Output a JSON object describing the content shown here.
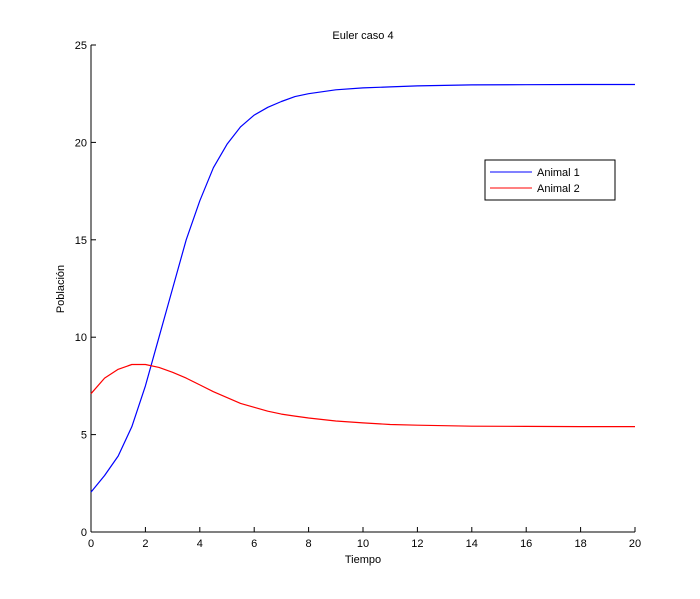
{
  "chart_data": {
    "type": "line",
    "title": "Euler caso 4",
    "xlabel": "Tiempo",
    "ylabel": "Población",
    "xlim": [
      0,
      20
    ],
    "ylim": [
      0,
      25
    ],
    "xticks": [
      0,
      2,
      4,
      6,
      8,
      10,
      12,
      14,
      16,
      18,
      20
    ],
    "yticks": [
      0,
      5,
      10,
      15,
      20,
      25
    ],
    "grid": false,
    "legend_position": "upper right (inside, near 75% height)",
    "x": [
      0,
      0.5,
      1,
      1.5,
      2,
      2.5,
      3,
      3.5,
      4,
      4.5,
      5,
      5.5,
      6,
      6.5,
      7,
      7.5,
      8,
      9,
      10,
      11,
      12,
      14,
      16,
      18,
      20
    ],
    "series": [
      {
        "name": "Animal 1",
        "color": "#0000ff",
        "values": [
          2.05,
          2.9,
          3.9,
          5.4,
          7.5,
          10.0,
          12.5,
          15.0,
          17.0,
          18.7,
          19.9,
          20.8,
          21.4,
          21.8,
          22.1,
          22.35,
          22.5,
          22.7,
          22.8,
          22.85,
          22.9,
          22.95,
          22.96,
          22.97,
          22.97
        ]
      },
      {
        "name": "Animal 2",
        "color": "#ff0000",
        "values": [
          7.1,
          7.9,
          8.35,
          8.6,
          8.6,
          8.45,
          8.2,
          7.9,
          7.55,
          7.2,
          6.9,
          6.6,
          6.4,
          6.2,
          6.05,
          5.95,
          5.85,
          5.7,
          5.6,
          5.52,
          5.48,
          5.43,
          5.42,
          5.41,
          5.41
        ]
      }
    ]
  },
  "legend": {
    "items": [
      {
        "label": "Animal 1",
        "color": "#0000ff"
      },
      {
        "label": "Animal 2",
        "color": "#ff0000"
      }
    ]
  }
}
